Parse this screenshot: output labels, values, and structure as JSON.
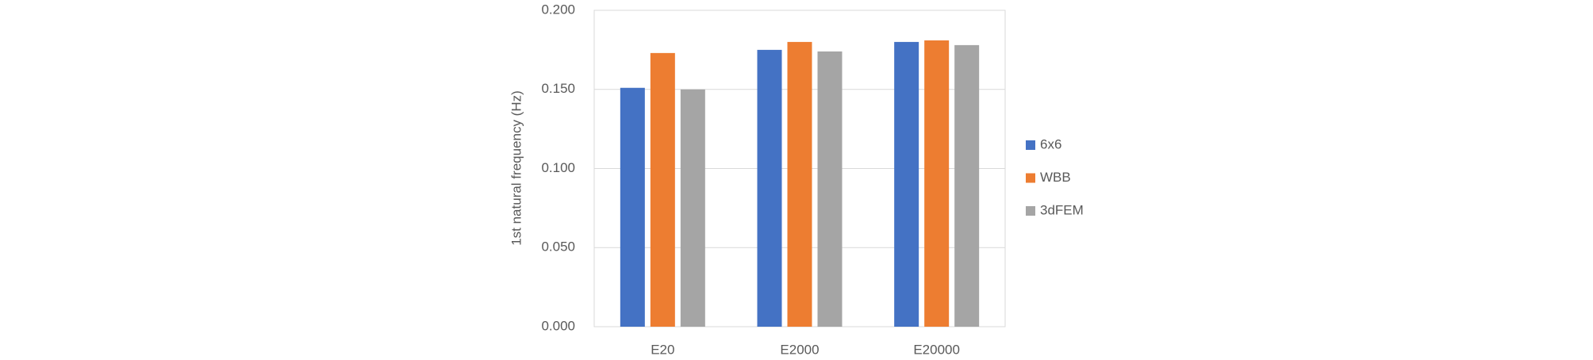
{
  "chart_data": {
    "type": "bar",
    "y_label": "1st natural frequency (Hz)",
    "categories": [
      "E20",
      "E2000",
      "E20000"
    ],
    "series": [
      {
        "name": "6x6",
        "color": "#4472c4",
        "values": [
          0.151,
          0.175,
          0.18
        ]
      },
      {
        "name": "WBB",
        "color": "#ed7d31",
        "values": [
          0.173,
          0.18,
          0.181
        ]
      },
      {
        "name": "3dFEM",
        "color": "#a5a5a5",
        "values": [
          0.15,
          0.174,
          0.178
        ]
      }
    ],
    "ylim": [
      0,
      0.2
    ],
    "yticks": [
      {
        "value": 0,
        "label": "0.000"
      },
      {
        "value": 0.05,
        "label": "0.050"
      },
      {
        "value": 0.1,
        "label": "0.100"
      },
      {
        "value": 0.15,
        "label": "0.150"
      },
      {
        "value": 0.2,
        "label": "0.200"
      }
    ],
    "grid": true,
    "legend": "right"
  }
}
